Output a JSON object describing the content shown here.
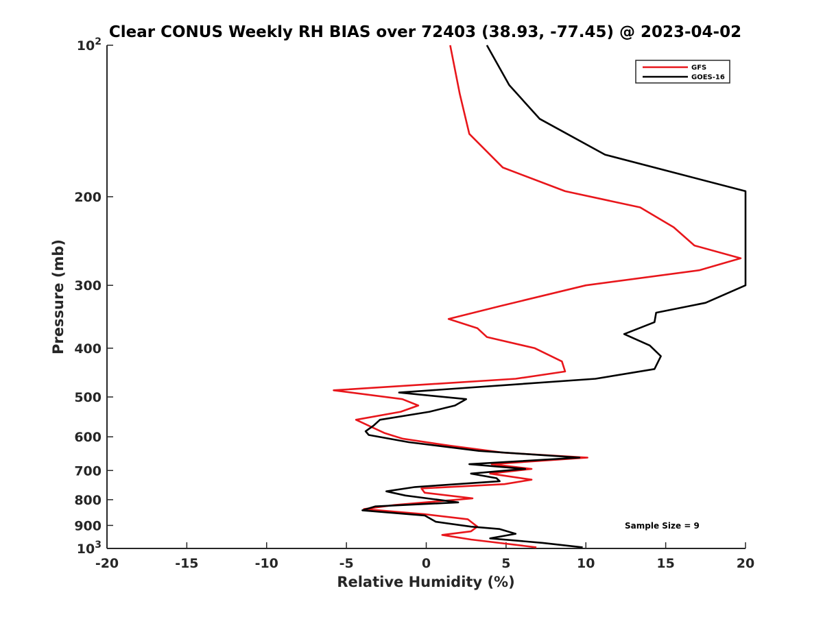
{
  "chart_data": {
    "type": "line",
    "title": "Clear CONUS Weekly RH BIAS over 72403 (38.93, -77.45) @ 2023-04-02",
    "xlabel": "Relative Humidity (%)",
    "ylabel": "Pressure (mb)",
    "xlim": [
      -20,
      20
    ],
    "ylim": [
      100,
      1000
    ],
    "y_scale": "log",
    "y_reversed": true,
    "x_ticks": [
      "-20",
      "-15",
      "-10",
      "-5",
      "0",
      "5",
      "10",
      "15",
      "20"
    ],
    "y_ticks": [
      {
        "value": 100,
        "base": "10",
        "exp": "2"
      },
      {
        "value": 200,
        "label": "200"
      },
      {
        "value": 300,
        "label": "300"
      },
      {
        "value": 400,
        "label": "400"
      },
      {
        "value": 500,
        "label": "500"
      },
      {
        "value": 600,
        "label": "600"
      },
      {
        "value": 700,
        "label": "700"
      },
      {
        "value": 800,
        "label": "800"
      },
      {
        "value": 900,
        "label": "900"
      },
      {
        "value": 1000,
        "base": "10",
        "exp": "3"
      }
    ],
    "grid": false,
    "legend_position": "top-right",
    "annotation": "Sample Size = 9",
    "series": [
      {
        "name": "GFS",
        "color": "#e8161b",
        "points": [
          [
            1.5,
            100
          ],
          [
            2.1,
            125
          ],
          [
            2.7,
            150
          ],
          [
            4.8,
            175
          ],
          [
            8.7,
            195
          ],
          [
            13.4,
            210
          ],
          [
            15.5,
            230
          ],
          [
            16.8,
            250
          ],
          [
            19.7,
            265
          ],
          [
            17.1,
            280
          ],
          [
            10.0,
            300
          ],
          [
            4.6,
            330
          ],
          [
            1.4,
            350
          ],
          [
            3.2,
            365
          ],
          [
            3.8,
            380
          ],
          [
            6.8,
            400
          ],
          [
            8.5,
            425
          ],
          [
            8.7,
            445
          ],
          [
            5.6,
            460
          ],
          [
            -5.8,
            485
          ],
          [
            -1.5,
            505
          ],
          [
            -0.5,
            520
          ],
          [
            -1.6,
            535
          ],
          [
            -4.4,
            555
          ],
          [
            -2.6,
            590
          ],
          [
            -1.5,
            605
          ],
          [
            1.5,
            625
          ],
          [
            4.8,
            645
          ],
          [
            10.1,
            660
          ],
          [
            4.1,
            680
          ],
          [
            6.6,
            695
          ],
          [
            4.0,
            710
          ],
          [
            6.6,
            730
          ],
          [
            4.9,
            745
          ],
          [
            -0.3,
            760
          ],
          [
            -0.1,
            775
          ],
          [
            2.9,
            795
          ],
          [
            -2.0,
            820
          ],
          [
            -3.9,
            835
          ],
          [
            -0.1,
            855
          ],
          [
            2.6,
            875
          ],
          [
            3.2,
            905
          ],
          [
            2.8,
            925
          ],
          [
            1.0,
            940
          ],
          [
            2.8,
            960
          ],
          [
            6.9,
            995
          ]
        ]
      },
      {
        "name": "GOES-16",
        "color": "#000000",
        "points": [
          [
            3.8,
            100
          ],
          [
            5.2,
            120
          ],
          [
            7.1,
            140
          ],
          [
            11.2,
            165
          ],
          [
            20.0,
            195
          ],
          [
            20.0,
            300
          ],
          [
            17.5,
            325
          ],
          [
            14.4,
            340
          ],
          [
            14.3,
            355
          ],
          [
            12.4,
            375
          ],
          [
            14.0,
            395
          ],
          [
            14.7,
            415
          ],
          [
            14.3,
            440
          ],
          [
            10.6,
            460
          ],
          [
            -1.7,
            490
          ],
          [
            2.5,
            505
          ],
          [
            1.8,
            520
          ],
          [
            0.2,
            535
          ],
          [
            -2.9,
            555
          ],
          [
            -3.3,
            570
          ],
          [
            -3.8,
            585
          ],
          [
            -3.6,
            595
          ],
          [
            -1.1,
            615
          ],
          [
            3.3,
            640
          ],
          [
            9.6,
            660
          ],
          [
            2.7,
            680
          ],
          [
            6.2,
            695
          ],
          [
            2.8,
            710
          ],
          [
            4.4,
            725
          ],
          [
            4.6,
            735
          ],
          [
            -0.7,
            755
          ],
          [
            -2.5,
            770
          ],
          [
            -1.3,
            785
          ],
          [
            2.0,
            810
          ],
          [
            -3.2,
            825
          ],
          [
            -4.0,
            840
          ],
          [
            -0.1,
            860
          ],
          [
            0.6,
            885
          ],
          [
            2.8,
            905
          ],
          [
            4.6,
            915
          ],
          [
            5.6,
            935
          ],
          [
            4.0,
            955
          ],
          [
            7.3,
            975
          ],
          [
            9.8,
            995
          ]
        ]
      }
    ]
  }
}
